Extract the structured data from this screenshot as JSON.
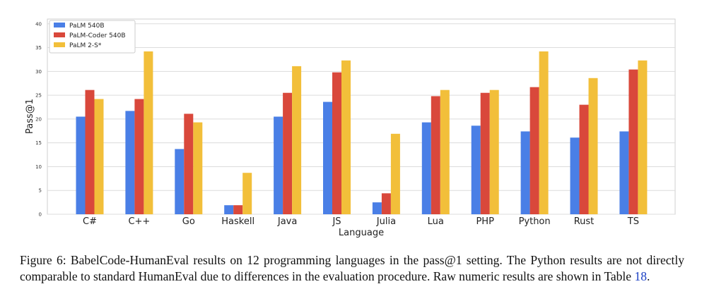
{
  "chart_data": {
    "type": "bar",
    "xlabel": "Language",
    "ylabel": "Pass@1",
    "ylim": [
      0,
      41
    ],
    "yticks": [
      0,
      5,
      10,
      15,
      20,
      25,
      30,
      35,
      40
    ],
    "grid": true,
    "legend_position": "top-left",
    "categories": [
      "C#",
      "C++",
      "Go",
      "Haskell",
      "Java",
      "JS",
      "Julia",
      "Lua",
      "PHP",
      "Python",
      "Rust",
      "TS"
    ],
    "series": [
      {
        "name": "PaLM 540B",
        "color": "#4a7fe6",
        "values": [
          20.5,
          21.7,
          13.7,
          1.9,
          20.5,
          23.6,
          2.5,
          19.3,
          18.6,
          17.4,
          16.1,
          17.4
        ]
      },
      {
        "name": "PaLM-Coder 540B",
        "color": "#d9483b",
        "values": [
          26.1,
          24.2,
          21.1,
          1.9,
          25.5,
          29.8,
          4.4,
          24.8,
          25.5,
          26.7,
          23.0,
          30.4
        ]
      },
      {
        "name": "PaLM 2-S*",
        "color": "#f2bf3a",
        "values": [
          24.2,
          34.2,
          19.3,
          8.7,
          31.1,
          32.3,
          16.9,
          26.1,
          26.1,
          34.2,
          28.6,
          32.3
        ]
      }
    ]
  },
  "caption": {
    "text_before": "Figure 6: BabelCode-HumanEval results on 12 programming languages in the pass@1 setting. The Python results are not directly comparable to standard HumanEval due to differences in the evaluation procedure. Raw numeric results are shown in Table ",
    "ref": "18",
    "text_after": "."
  }
}
